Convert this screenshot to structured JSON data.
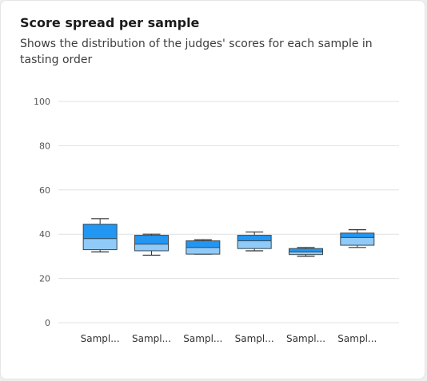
{
  "card": {
    "title": "Score spread per sample",
    "subtitle": "Shows the distribution of the judges' scores for each sample in tasting order"
  },
  "colors": {
    "box_upper": "#2196f3",
    "box_lower": "#90caf9",
    "box_outline": "#37474f",
    "whisker": "#333333",
    "grid": "#e0e0e0"
  },
  "chart_data": {
    "type": "boxplot",
    "title": "Score spread per sample",
    "subtitle": "Shows the distribution of the judges' scores for each sample in tasting order",
    "xlabel": "",
    "ylabel": "",
    "ylim": [
      0,
      100
    ],
    "yticks": [
      "0",
      "20",
      "40",
      "60",
      "80",
      "100"
    ],
    "grid": true,
    "categories": [
      "Sampl...",
      "Sampl...",
      "Sampl...",
      "Sampl...",
      "Sampl...",
      "Sampl..."
    ],
    "boxes": [
      {
        "min": 32,
        "q1": 33,
        "median": 38,
        "q3": 44.5,
        "max": 47
      },
      {
        "min": 30.5,
        "q1": 32.5,
        "median": 35.5,
        "q3": 39.5,
        "max": 40
      },
      {
        "min": 31,
        "q1": 31,
        "median": 34,
        "q3": 37,
        "max": 37.5
      },
      {
        "min": 32.5,
        "q1": 33.5,
        "median": 37,
        "q3": 39.5,
        "max": 41
      },
      {
        "min": 30,
        "q1": 30.8,
        "median": 32,
        "q3": 33.5,
        "max": 34
      },
      {
        "min": 34,
        "q1": 35,
        "median": 38.5,
        "q3": 40.5,
        "max": 42
      }
    ]
  }
}
